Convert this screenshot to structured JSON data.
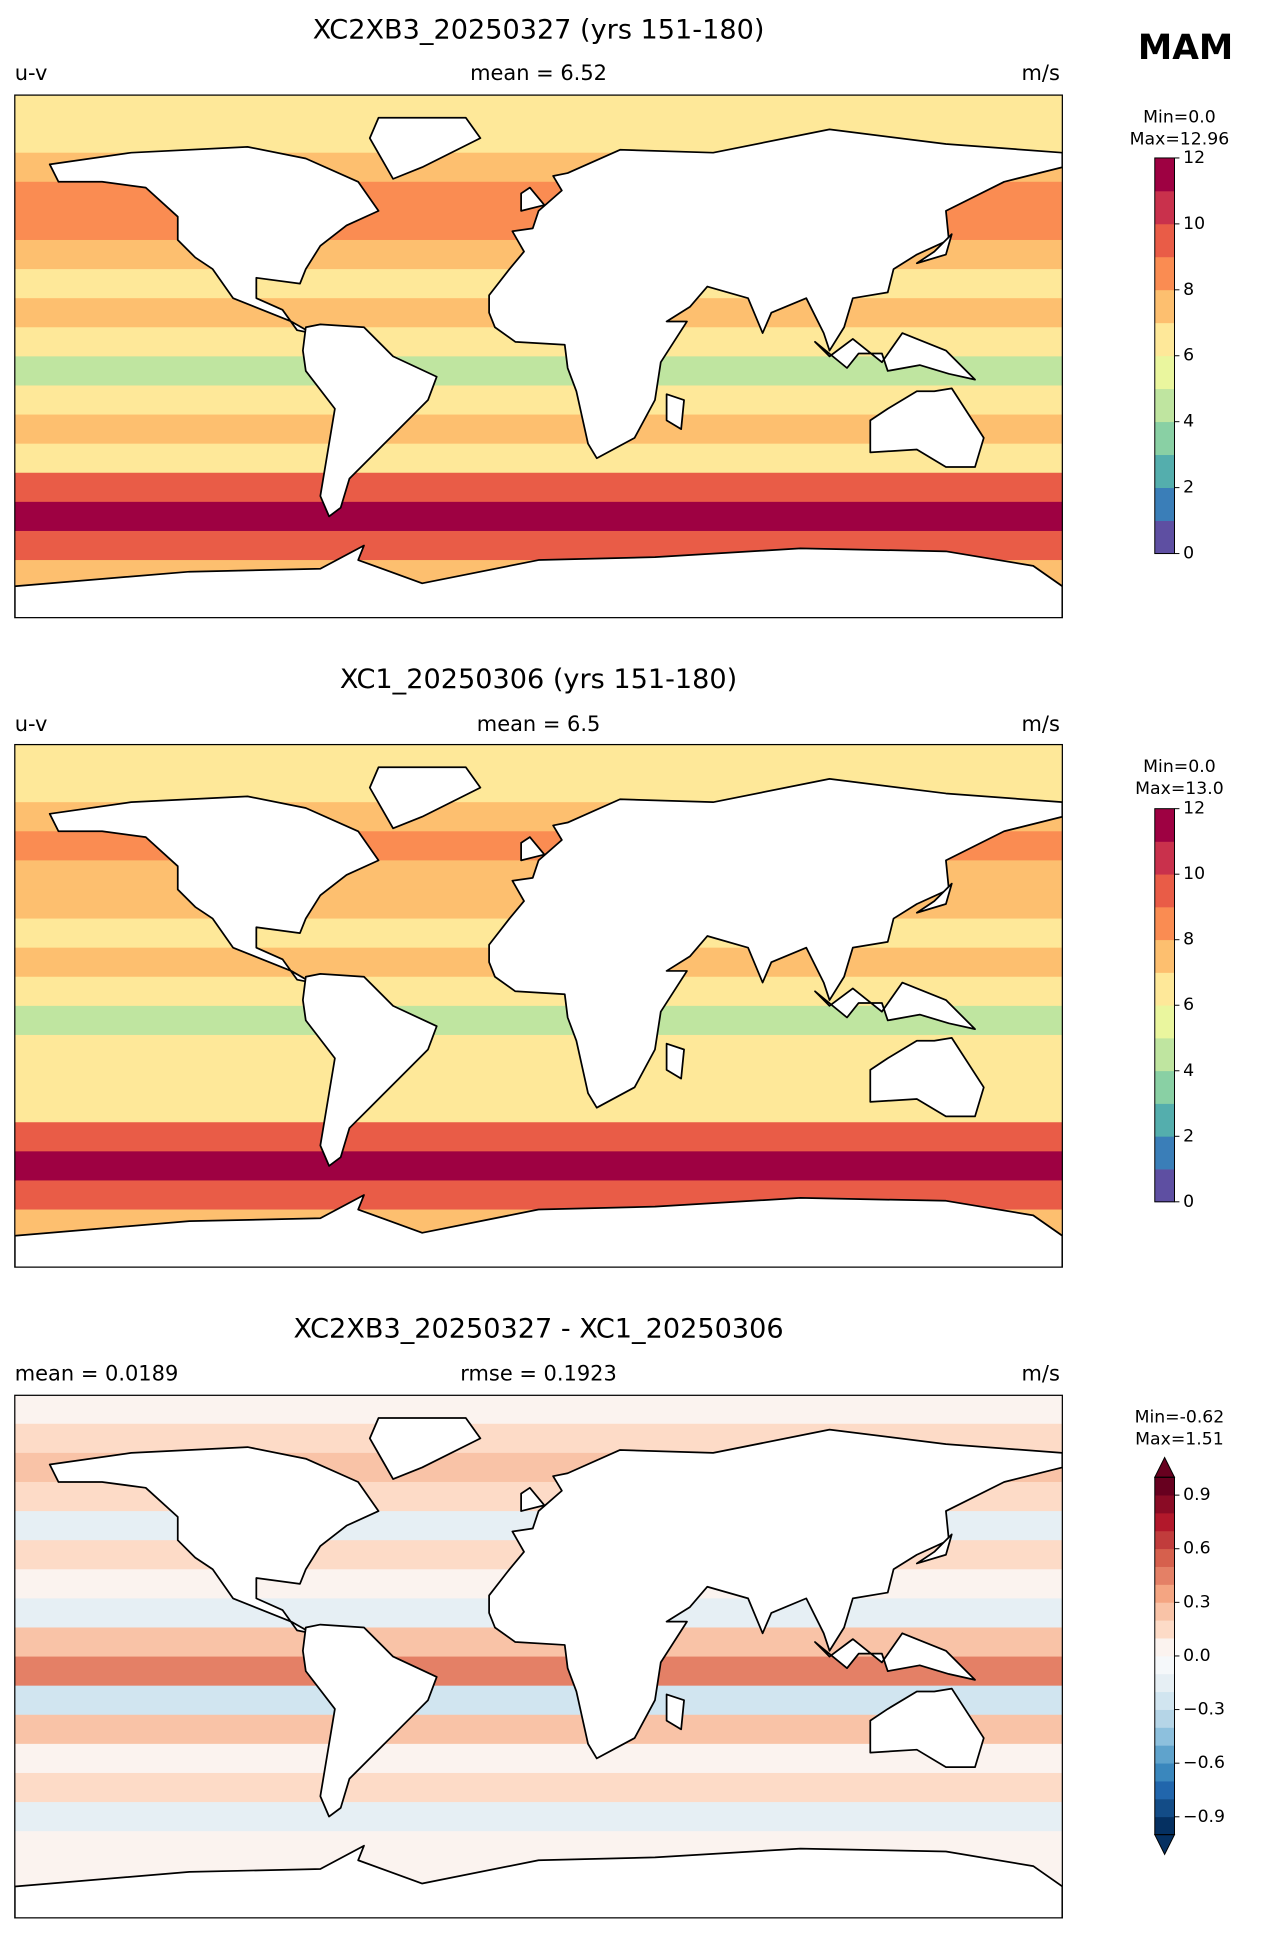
{
  "season": "MAM",
  "panels": [
    {
      "title": "XC2XB3_20250327 (yrs 151-180)",
      "left_label": "u-v",
      "center_label": "mean = 6.52",
      "units": "m/s",
      "min_label": "Min=0.0",
      "max_label": "Max=12.96",
      "colorbar": {
        "clim": [
          0,
          12
        ],
        "ticks": [
          0,
          2,
          4,
          6,
          8,
          10,
          12
        ],
        "colors": [
          "#5e4fa2",
          "#3a7eb8",
          "#54aead",
          "#89d0a4",
          "#bfe5a0",
          "#eaf69e",
          "#fee899",
          "#fdbf6f",
          "#fa8c52",
          "#e95c47",
          "#c9314c",
          "#9e0142"
        ]
      },
      "latitudes": [
        85,
        75,
        65,
        55,
        45,
        35,
        25,
        15,
        5,
        -5,
        -15,
        -25,
        -35,
        -45,
        -55,
        -65,
        -75,
        -85
      ],
      "zonal_values": [
        6.5,
        6.8,
        7.5,
        8.5,
        8,
        7,
        6.5,
        7.5,
        6,
        4,
        6.5,
        7,
        6.5,
        9,
        11.5,
        9,
        7,
        null
      ]
    },
    {
      "title": "XC1_20250306 (yrs 151-180)",
      "left_label": "u-v",
      "center_label": "mean = 6.5",
      "units": "m/s",
      "min_label": "Min=0.0",
      "max_label": "Max=13.0",
      "colorbar": {
        "clim": [
          0,
          12
        ],
        "ticks": [
          0,
          2,
          4,
          6,
          8,
          10,
          12
        ],
        "colors": [
          "#5e4fa2",
          "#3a7eb8",
          "#54aead",
          "#89d0a4",
          "#bfe5a0",
          "#eaf69e",
          "#fee899",
          "#fdbf6f",
          "#fa8c52",
          "#e95c47",
          "#c9314c",
          "#9e0142"
        ]
      },
      "latitudes": [
        85,
        75,
        65,
        55,
        45,
        35,
        25,
        15,
        5,
        -5,
        -15,
        -25,
        -35,
        -45,
        -55,
        -65,
        -75,
        -85
      ],
      "zonal_values": [
        6.5,
        6.8,
        7.5,
        8.3,
        7.8,
        7,
        6.5,
        7.5,
        6,
        4,
        6.2,
        6.8,
        6.5,
        9,
        11.5,
        9,
        7,
        null
      ]
    },
    {
      "title": "XC2XB3_20250327 - XC1_20250306",
      "left_label": "mean = 0.0189",
      "center_label": "rmse = 0.1923",
      "units": "m/s",
      "min_label": "Min=-0.62",
      "max_label": "Max=1.51",
      "colorbar": {
        "clim": [
          -1,
          1
        ],
        "extend": "both",
        "ticks": [
          {
            "value": -0.9,
            "label": "−0.9"
          },
          {
            "value": -0.6,
            "label": "−0.6"
          },
          {
            "value": -0.3,
            "label": "−0.3"
          },
          {
            "value": 0,
            "label": "0.0"
          },
          0.3,
          0.6,
          0.9
        ],
        "colors": [
          "#053061",
          "#134c87",
          "#2166ac",
          "#3a87bd",
          "#5fa3cc",
          "#8dc0dd",
          "#b5d5e7",
          "#d1e5f0",
          "#e6eff4",
          "#f5f8fa",
          "#fbf3ef",
          "#fddbc7",
          "#f9c3a7",
          "#f4a582",
          "#e48066",
          "#d6604d",
          "#c13c3c",
          "#b2182b",
          "#8a0b25",
          "#67001f"
        ]
      },
      "latitudes": [
        85,
        75,
        65,
        55,
        45,
        35,
        25,
        15,
        5,
        -5,
        -15,
        -25,
        -35,
        -45,
        -55,
        -65,
        -75,
        -85
      ],
      "zonal_values": [
        0.05,
        0.15,
        0.25,
        0.1,
        -0.15,
        0.15,
        0.05,
        -0.15,
        0.25,
        0.45,
        -0.25,
        0.25,
        0.05,
        0.15,
        -0.15,
        0.05,
        0,
        null
      ]
    }
  ]
}
